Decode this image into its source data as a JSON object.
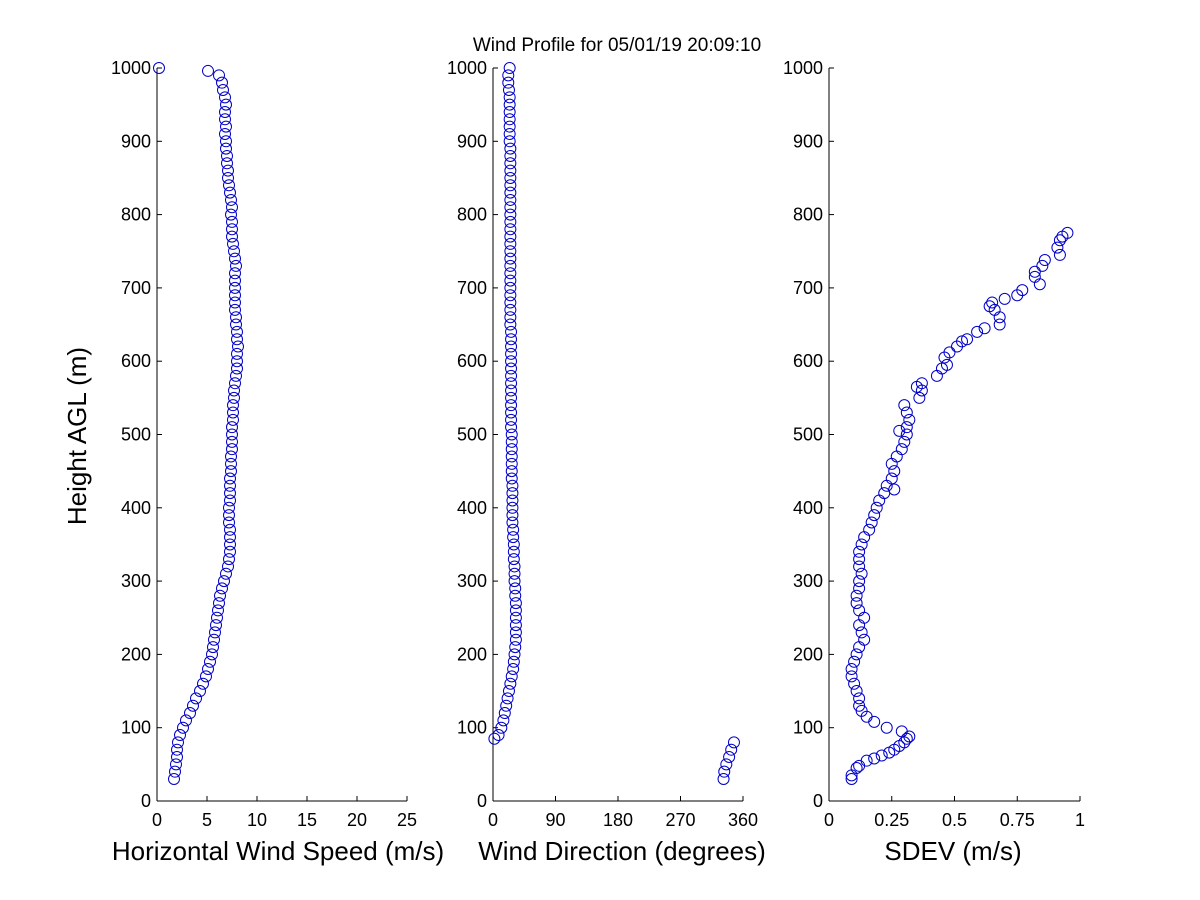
{
  "title": "Wind Profile for  05/01/19 20:09:10",
  "marker_color": "#0000c8",
  "chart_data": [
    {
      "type": "scatter",
      "title": "",
      "xlabel": "Horizontal Wind Speed (m/s)",
      "ylabel": "Height AGL (m)",
      "xlim": [
        0,
        25
      ],
      "ylim": [
        0,
        1000
      ],
      "x_ticks": [
        0,
        5,
        10,
        15,
        20,
        25
      ],
      "x_tick_labels": [
        "0",
        "5",
        "10",
        "15",
        "20",
        "25"
      ],
      "y_ticks": [
        0,
        100,
        200,
        300,
        400,
        500,
        600,
        700,
        800,
        900,
        1000
      ],
      "y_tick_labels": [
        "0",
        "100",
        "200",
        "300",
        "400",
        "500",
        "600",
        "700",
        "800",
        "900",
        "1000"
      ],
      "grid": false,
      "points": [
        [
          1.7,
          30
        ],
        [
          1.8,
          40
        ],
        [
          1.9,
          50
        ],
        [
          2.0,
          60
        ],
        [
          2.0,
          70
        ],
        [
          2.1,
          80
        ],
        [
          2.3,
          90
        ],
        [
          2.6,
          100
        ],
        [
          2.9,
          110
        ],
        [
          3.3,
          120
        ],
        [
          3.6,
          130
        ],
        [
          3.9,
          140
        ],
        [
          4.3,
          150
        ],
        [
          4.6,
          160
        ],
        [
          4.9,
          170
        ],
        [
          5.1,
          180
        ],
        [
          5.3,
          190
        ],
        [
          5.5,
          200
        ],
        [
          5.6,
          210
        ],
        [
          5.7,
          220
        ],
        [
          5.8,
          230
        ],
        [
          5.9,
          240
        ],
        [
          6.0,
          250
        ],
        [
          6.1,
          260
        ],
        [
          6.2,
          270
        ],
        [
          6.3,
          280
        ],
        [
          6.5,
          290
        ],
        [
          6.7,
          300
        ],
        [
          6.9,
          310
        ],
        [
          7.1,
          320
        ],
        [
          7.2,
          330
        ],
        [
          7.3,
          340
        ],
        [
          7.3,
          350
        ],
        [
          7.3,
          360
        ],
        [
          7.3,
          370
        ],
        [
          7.2,
          380
        ],
        [
          7.2,
          390
        ],
        [
          7.2,
          400
        ],
        [
          7.3,
          410
        ],
        [
          7.3,
          420
        ],
        [
          7.3,
          430
        ],
        [
          7.3,
          440
        ],
        [
          7.4,
          450
        ],
        [
          7.4,
          460
        ],
        [
          7.4,
          470
        ],
        [
          7.5,
          480
        ],
        [
          7.5,
          490
        ],
        [
          7.5,
          500
        ],
        [
          7.5,
          510
        ],
        [
          7.6,
          520
        ],
        [
          7.6,
          530
        ],
        [
          7.6,
          540
        ],
        [
          7.7,
          550
        ],
        [
          7.7,
          560
        ],
        [
          7.8,
          570
        ],
        [
          7.9,
          580
        ],
        [
          8.0,
          590
        ],
        [
          8.0,
          600
        ],
        [
          8.0,
          610
        ],
        [
          8.1,
          620
        ],
        [
          8.0,
          630
        ],
        [
          8.0,
          640
        ],
        [
          7.9,
          650
        ],
        [
          7.9,
          660
        ],
        [
          7.8,
          670
        ],
        [
          7.8,
          680
        ],
        [
          7.8,
          690
        ],
        [
          7.8,
          700
        ],
        [
          7.8,
          710
        ],
        [
          7.8,
          720
        ],
        [
          7.9,
          730
        ],
        [
          7.8,
          740
        ],
        [
          7.7,
          750
        ],
        [
          7.6,
          760
        ],
        [
          7.5,
          770
        ],
        [
          7.5,
          780
        ],
        [
          7.5,
          790
        ],
        [
          7.4,
          800
        ],
        [
          7.5,
          810
        ],
        [
          7.4,
          820
        ],
        [
          7.3,
          830
        ],
        [
          7.2,
          840
        ],
        [
          7.1,
          850
        ],
        [
          7.1,
          860
        ],
        [
          7.0,
          870
        ],
        [
          7.0,
          880
        ],
        [
          6.9,
          890
        ],
        [
          6.9,
          900
        ],
        [
          6.8,
          910
        ],
        [
          6.9,
          920
        ],
        [
          6.8,
          930
        ],
        [
          6.8,
          940
        ],
        [
          6.9,
          950
        ],
        [
          6.8,
          960
        ],
        [
          6.6,
          970
        ],
        [
          6.5,
          980
        ],
        [
          6.2,
          990
        ],
        [
          5.1,
          996
        ],
        [
          0.2,
          1000
        ]
      ]
    },
    {
      "type": "scatter",
      "title": "",
      "xlabel": "Wind Direction (degrees)",
      "ylabel": "",
      "xlim": [
        0,
        360
      ],
      "ylim": [
        0,
        1000
      ],
      "x_ticks": [
        0,
        90,
        180,
        270,
        360
      ],
      "x_tick_labels": [
        "0",
        "90",
        "180",
        "270",
        "360"
      ],
      "y_ticks": [
        0,
        100,
        200,
        300,
        400,
        500,
        600,
        700,
        800,
        900,
        1000
      ],
      "y_tick_labels": [
        "0",
        "100",
        "200",
        "300",
        "400",
        "500",
        "600",
        "700",
        "800",
        "900",
        "1000"
      ],
      "grid": false,
      "points": [
        [
          332,
          30
        ],
        [
          333,
          40
        ],
        [
          336,
          50
        ],
        [
          340,
          60
        ],
        [
          343,
          70
        ],
        [
          347,
          80
        ],
        [
          2,
          85
        ],
        [
          8,
          90
        ],
        [
          12,
          100
        ],
        [
          15,
          110
        ],
        [
          17,
          120
        ],
        [
          19,
          130
        ],
        [
          21,
          140
        ],
        [
          23,
          150
        ],
        [
          25,
          160
        ],
        [
          27,
          170
        ],
        [
          29,
          180
        ],
        [
          30,
          190
        ],
        [
          31,
          200
        ],
        [
          32,
          210
        ],
        [
          33,
          220
        ],
        [
          33,
          230
        ],
        [
          33,
          240
        ],
        [
          33,
          250
        ],
        [
          33,
          260
        ],
        [
          33,
          270
        ],
        [
          32,
          280
        ],
        [
          32,
          290
        ],
        [
          31,
          300
        ],
        [
          31,
          310
        ],
        [
          31,
          320
        ],
        [
          30,
          330
        ],
        [
          30,
          340
        ],
        [
          30,
          350
        ],
        [
          29,
          360
        ],
        [
          29,
          370
        ],
        [
          28,
          380
        ],
        [
          28,
          390
        ],
        [
          28,
          400
        ],
        [
          28,
          410
        ],
        [
          28,
          420
        ],
        [
          28,
          430
        ],
        [
          27,
          440
        ],
        [
          27,
          450
        ],
        [
          27,
          460
        ],
        [
          27,
          470
        ],
        [
          27,
          480
        ],
        [
          27,
          490
        ],
        [
          27,
          500
        ],
        [
          26,
          510
        ],
        [
          26,
          520
        ],
        [
          26,
          530
        ],
        [
          26,
          540
        ],
        [
          26,
          550
        ],
        [
          26,
          560
        ],
        [
          26,
          570
        ],
        [
          26,
          580
        ],
        [
          26,
          590
        ],
        [
          26,
          600
        ],
        [
          26,
          610
        ],
        [
          26,
          620
        ],
        [
          26,
          630
        ],
        [
          26,
          640
        ],
        [
          25,
          650
        ],
        [
          25,
          660
        ],
        [
          25,
          670
        ],
        [
          25,
          680
        ],
        [
          25,
          690
        ],
        [
          25,
          700
        ],
        [
          25,
          710
        ],
        [
          25,
          720
        ],
        [
          25,
          730
        ],
        [
          25,
          740
        ],
        [
          25,
          750
        ],
        [
          25,
          760
        ],
        [
          25,
          770
        ],
        [
          25,
          780
        ],
        [
          25,
          790
        ],
        [
          25,
          800
        ],
        [
          25,
          810
        ],
        [
          25,
          820
        ],
        [
          25,
          830
        ],
        [
          25,
          840
        ],
        [
          25,
          850
        ],
        [
          25,
          860
        ],
        [
          25,
          870
        ],
        [
          25,
          880
        ],
        [
          25,
          890
        ],
        [
          24,
          900
        ],
        [
          24,
          910
        ],
        [
          24,
          920
        ],
        [
          24,
          930
        ],
        [
          24,
          940
        ],
        [
          24,
          950
        ],
        [
          24,
          960
        ],
        [
          23,
          970
        ],
        [
          22,
          980
        ],
        [
          22,
          990
        ],
        [
          24,
          1000
        ]
      ]
    },
    {
      "type": "scatter",
      "title": "",
      "xlabel": "SDEV  (m/s)",
      "ylabel": "",
      "xlim": [
        0,
        1
      ],
      "ylim": [
        0,
        1000
      ],
      "x_ticks": [
        0,
        0.25,
        0.5,
        0.75,
        1
      ],
      "x_tick_labels": [
        "0",
        "0.25",
        "0.5",
        "0.75",
        "1"
      ],
      "y_ticks": [
        0,
        100,
        200,
        300,
        400,
        500,
        600,
        700,
        800,
        900,
        1000
      ],
      "y_tick_labels": [
        "0",
        "100",
        "200",
        "300",
        "400",
        "500",
        "600",
        "700",
        "800",
        "900",
        "1000"
      ],
      "grid": false,
      "points": [
        [
          0.09,
          30
        ],
        [
          0.09,
          35
        ],
        [
          0.11,
          45
        ],
        [
          0.12,
          48
        ],
        [
          0.15,
          55
        ],
        [
          0.18,
          58
        ],
        [
          0.21,
          62
        ],
        [
          0.24,
          66
        ],
        [
          0.26,
          70
        ],
        [
          0.28,
          75
        ],
        [
          0.3,
          80
        ],
        [
          0.31,
          85
        ],
        [
          0.32,
          88
        ],
        [
          0.29,
          95
        ],
        [
          0.23,
          100
        ],
        [
          0.18,
          108
        ],
        [
          0.15,
          115
        ],
        [
          0.13,
          123
        ],
        [
          0.12,
          130
        ],
        [
          0.12,
          140
        ],
        [
          0.11,
          150
        ],
        [
          0.1,
          160
        ],
        [
          0.09,
          170
        ],
        [
          0.09,
          180
        ],
        [
          0.1,
          190
        ],
        [
          0.11,
          200
        ],
        [
          0.12,
          210
        ],
        [
          0.14,
          220
        ],
        [
          0.13,
          230
        ],
        [
          0.12,
          240
        ],
        [
          0.14,
          250
        ],
        [
          0.12,
          260
        ],
        [
          0.11,
          270
        ],
        [
          0.11,
          280
        ],
        [
          0.12,
          290
        ],
        [
          0.12,
          300
        ],
        [
          0.13,
          310
        ],
        [
          0.12,
          320
        ],
        [
          0.12,
          330
        ],
        [
          0.12,
          340
        ],
        [
          0.13,
          350
        ],
        [
          0.14,
          360
        ],
        [
          0.16,
          370
        ],
        [
          0.17,
          380
        ],
        [
          0.18,
          390
        ],
        [
          0.19,
          400
        ],
        [
          0.2,
          410
        ],
        [
          0.22,
          420
        ],
        [
          0.26,
          425
        ],
        [
          0.23,
          430
        ],
        [
          0.25,
          440
        ],
        [
          0.26,
          450
        ],
        [
          0.25,
          460
        ],
        [
          0.27,
          470
        ],
        [
          0.29,
          480
        ],
        [
          0.3,
          490
        ],
        [
          0.31,
          500
        ],
        [
          0.28,
          505
        ],
        [
          0.31,
          510
        ],
        [
          0.32,
          520
        ],
        [
          0.31,
          530
        ],
        [
          0.3,
          540
        ],
        [
          0.36,
          550
        ],
        [
          0.37,
          560
        ],
        [
          0.35,
          565
        ],
        [
          0.37,
          570
        ],
        [
          0.43,
          580
        ],
        [
          0.45,
          590
        ],
        [
          0.47,
          595
        ],
        [
          0.46,
          605
        ],
        [
          0.48,
          612
        ],
        [
          0.51,
          620
        ],
        [
          0.53,
          627
        ],
        [
          0.55,
          630
        ],
        [
          0.59,
          640
        ],
        [
          0.62,
          645
        ],
        [
          0.68,
          650
        ],
        [
          0.68,
          660
        ],
        [
          0.66,
          670
        ],
        [
          0.64,
          675
        ],
        [
          0.65,
          680
        ],
        [
          0.7,
          685
        ],
        [
          0.75,
          690
        ],
        [
          0.77,
          697
        ],
        [
          0.84,
          705
        ],
        [
          0.82,
          715
        ],
        [
          0.82,
          722
        ],
        [
          0.85,
          730
        ],
        [
          0.86,
          738
        ],
        [
          0.92,
          745
        ],
        [
          0.91,
          755
        ],
        [
          0.92,
          765
        ],
        [
          0.93,
          770
        ],
        [
          0.95,
          775
        ]
      ]
    }
  ]
}
